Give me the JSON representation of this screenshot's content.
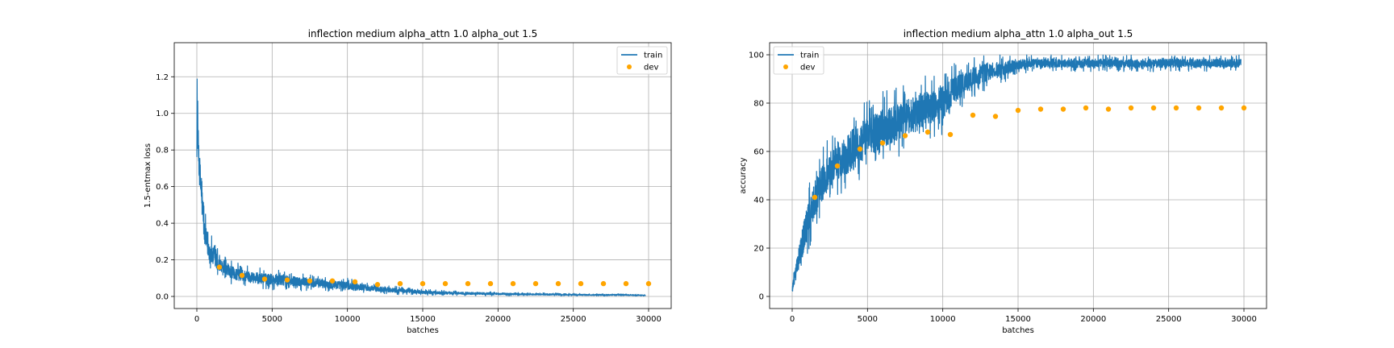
{
  "chart_data": [
    {
      "type": "line",
      "title": "inflection medium alpha_attn 1.0 alpha_out 1.5",
      "xlabel": "batches",
      "ylabel": "1.5-entmax loss",
      "xlim": [
        -1500,
        31500
      ],
      "ylim": [
        -0.066,
        1.386
      ],
      "xticks": [
        0,
        5000,
        10000,
        15000,
        20000,
        25000,
        30000
      ],
      "yticks": [
        0.0,
        0.2,
        0.4,
        0.6,
        0.8,
        1.0,
        1.2
      ],
      "ytick_labels": [
        "0.0",
        "0.2",
        "0.4",
        "0.6",
        "0.8",
        "1.0",
        "1.2"
      ],
      "grid": true,
      "legend_position": "top-right",
      "series": [
        {
          "name": "train",
          "kind": "line",
          "color": "#1f77b4",
          "envelope": {
            "x": [
              0,
              50,
              150,
              300,
              500,
              800,
              1200,
              1600,
              2000,
              2500,
              3000,
              4000,
              5000,
              6000,
              7000,
              8000,
              9000,
              10000,
              11000,
              12000,
              13000,
              14000,
              15000,
              16000,
              18000,
              20000,
              22000,
              24000,
              26000,
              28000,
              29800
            ],
            "low": [
              0.75,
              0.7,
              0.55,
              0.38,
              0.22,
              0.14,
              0.1,
              0.08,
              0.07,
              0.06,
              0.05,
              0.04,
              0.035,
              0.03,
              0.03,
              0.025,
              0.02,
              0.02,
              0.015,
              0.012,
              0.01,
              0.008,
              0.006,
              0.005,
              0.004,
              0.003,
              0.003,
              0.002,
              0.002,
              0.002,
              0.002
            ],
            "high": [
              1.32,
              1.1,
              0.9,
              0.75,
              0.48,
              0.36,
              0.3,
              0.24,
              0.21,
              0.19,
              0.18,
              0.16,
              0.15,
              0.14,
              0.13,
              0.12,
              0.11,
              0.1,
              0.085,
              0.07,
              0.06,
              0.05,
              0.04,
              0.035,
              0.03,
              0.025,
              0.02,
              0.02,
              0.015,
              0.015,
              0.01
            ]
          }
        },
        {
          "name": "dev",
          "kind": "scatter",
          "color": "#ffa500",
          "x": [
            1500,
            3000,
            4500,
            6000,
            7500,
            9000,
            10500,
            12000,
            13500,
            15000,
            16500,
            18000,
            19500,
            21000,
            22500,
            24000,
            25500,
            27000,
            28500,
            30000
          ],
          "y": [
            0.16,
            0.115,
            0.095,
            0.09,
            0.085,
            0.085,
            0.08,
            0.065,
            0.07,
            0.07,
            0.07,
            0.07,
            0.07,
            0.07,
            0.07,
            0.07,
            0.07,
            0.07,
            0.07,
            0.07
          ]
        }
      ]
    },
    {
      "type": "line",
      "title": "inflection medium alpha_attn 1.0 alpha_out 1.5",
      "xlabel": "batches",
      "ylabel": "accuracy",
      "xlim": [
        -1500,
        31500
      ],
      "ylim": [
        -5,
        105
      ],
      "xticks": [
        0,
        5000,
        10000,
        15000,
        20000,
        25000,
        30000
      ],
      "yticks": [
        0,
        20,
        40,
        60,
        80,
        100
      ],
      "ytick_labels": [
        "0",
        "20",
        "40",
        "60",
        "80",
        "100"
      ],
      "grid": true,
      "legend_position": "top-left",
      "series": [
        {
          "name": "train",
          "kind": "line",
          "color": "#1f77b4",
          "envelope": {
            "x": [
              0,
              200,
              500,
              1000,
              1500,
              2000,
              2500,
              3000,
              4000,
              5000,
              6000,
              7000,
              8000,
              9000,
              10000,
              10500,
              11000,
              12000,
              13000,
              14000,
              15000,
              16000,
              18000,
              20000,
              22000,
              24000,
              26000,
              28000,
              29800
            ],
            "low": [
              0,
              3,
              8,
              15,
              25,
              32,
              38,
              40,
              43,
              50,
              54,
              57,
              60,
              64,
              66,
              72,
              76,
              82,
              86,
              88,
              92,
              93,
              93,
              93,
              93,
              93,
              93,
              93,
              93
            ],
            "high": [
              5,
              14,
              28,
              45,
              55,
              62,
              67,
              72,
              78,
              82,
              85,
              87,
              90,
              92,
              94,
              96,
              97,
              99,
              100,
              100,
              100,
              100,
              100,
              100,
              100,
              100,
              100,
              100,
              100
            ]
          }
        },
        {
          "name": "dev",
          "kind": "scatter",
          "color": "#ffa500",
          "x": [
            1500,
            3000,
            4500,
            6000,
            7500,
            9000,
            10500,
            12000,
            13500,
            15000,
            16500,
            18000,
            19500,
            21000,
            22500,
            24000,
            25500,
            27000,
            28500,
            30000
          ],
          "y": [
            41,
            54,
            61,
            63.5,
            66.5,
            68,
            67,
            75,
            74.5,
            77,
            77.5,
            77.5,
            78,
            77.5,
            78,
            78,
            78,
            78,
            78,
            78
          ]
        }
      ]
    }
  ]
}
